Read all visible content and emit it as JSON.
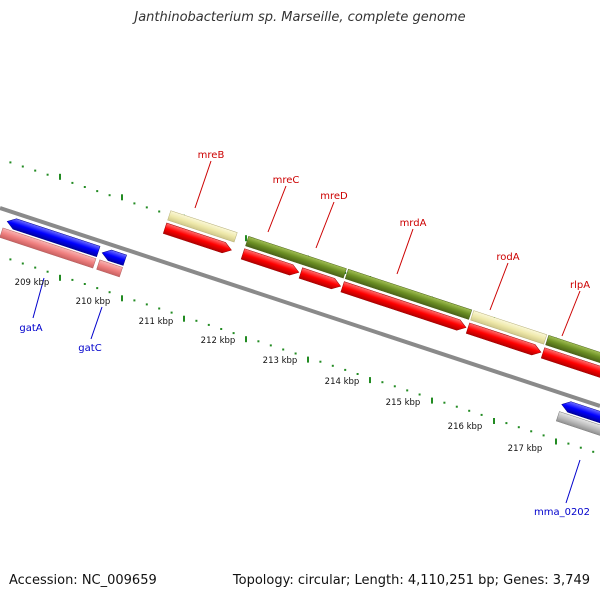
{
  "title": "Janthinobacterium sp. Marseille, complete genome",
  "footer": {
    "accession": "Accession: NC_009659",
    "topology": "Topology: circular; Length: 4,110,251 bp; Genes: 3,749"
  },
  "colors": {
    "forward_cds": "#ff0000",
    "reverse_cds": "#0000ff",
    "pale_red": "#f08080",
    "olive": "#6b8e23",
    "khaki": "#eee8aa",
    "gray": "#aaaaaa",
    "backbone": "#808080",
    "tick": "#228b22",
    "red_label": "#cc0000",
    "blue_label": "#0000cc"
  },
  "scale": {
    "unit": "kbp",
    "ticks": [
      {
        "label": "209 kbp"
      },
      {
        "label": "210 kbp"
      },
      {
        "label": "211 kbp"
      },
      {
        "label": "212 kbp"
      },
      {
        "label": "213 kbp"
      },
      {
        "label": "214 kbp"
      },
      {
        "label": "215 kbp"
      },
      {
        "label": "216 kbp"
      },
      {
        "label": "217 kbp"
      }
    ]
  },
  "gene_labels": [
    {
      "name": "mreB",
      "strand": "forward"
    },
    {
      "name": "mreC",
      "strand": "forward"
    },
    {
      "name": "mreD",
      "strand": "forward"
    },
    {
      "name": "mrdA",
      "strand": "forward"
    },
    {
      "name": "rodA",
      "strand": "forward"
    },
    {
      "name": "rlpA",
      "strand": "forward"
    },
    {
      "name": "gatA",
      "strand": "reverse"
    },
    {
      "name": "gatC",
      "strand": "reverse"
    },
    {
      "name": "mma_0202",
      "strand": "reverse"
    }
  ]
}
